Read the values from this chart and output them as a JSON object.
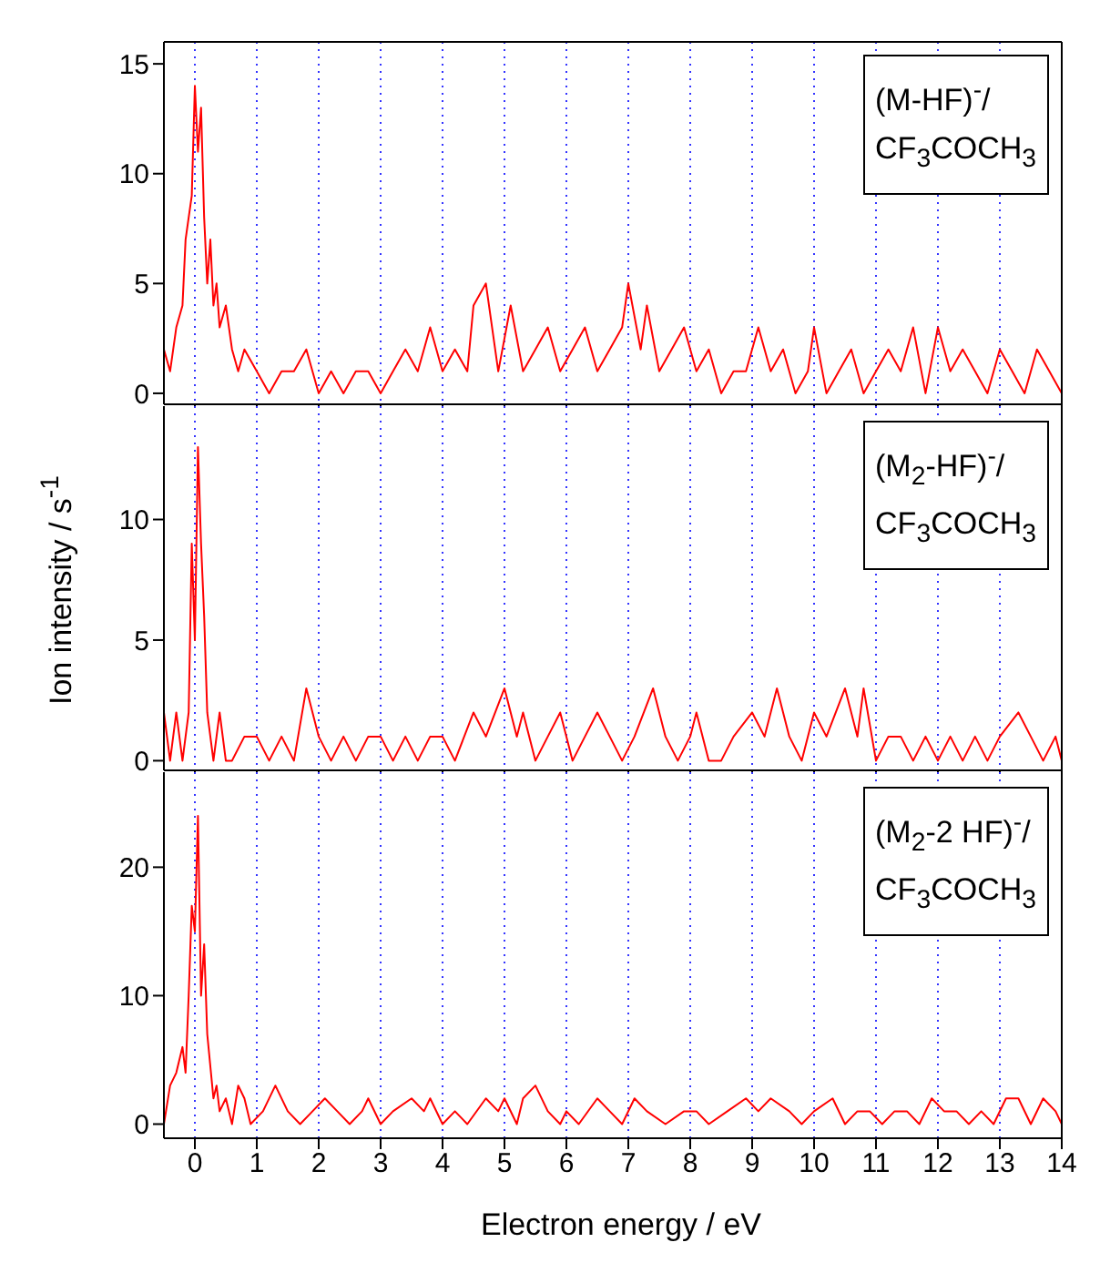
{
  "chart_data": [
    {
      "type": "line",
      "xlim": [
        -0.5,
        14
      ],
      "xticks": [
        0,
        1,
        2,
        3,
        4,
        5,
        6,
        7,
        8,
        9,
        10,
        11,
        12,
        13,
        14
      ],
      "ylim": [
        -0.5,
        16
      ],
      "yticks": [
        0,
        5,
        10,
        15
      ],
      "grid": "x",
      "tick_labels": "y",
      "annotations": [
        "(M-HF)$^{-}$/",
        "CF$_{3}$COCH$_{3}$"
      ],
      "x": [
        -0.5,
        -0.4,
        -0.3,
        -0.2,
        -0.15,
        -0.1,
        -0.05,
        0,
        0.05,
        0.1,
        0.15,
        0.2,
        0.25,
        0.3,
        0.35,
        0.4,
        0.5,
        0.6,
        0.7,
        0.8,
        1.0,
        1.2,
        1.4,
        1.6,
        1.8,
        2.0,
        2.2,
        2.4,
        2.6,
        2.8,
        3.0,
        3.2,
        3.4,
        3.6,
        3.8,
        4.0,
        4.2,
        4.4,
        4.5,
        4.7,
        4.9,
        5.1,
        5.3,
        5.5,
        5.7,
        5.9,
        6.1,
        6.3,
        6.5,
        6.7,
        6.9,
        7.0,
        7.2,
        7.3,
        7.5,
        7.7,
        7.9,
        8.1,
        8.3,
        8.5,
        8.7,
        8.9,
        9.1,
        9.3,
        9.5,
        9.7,
        9.9,
        10.0,
        10.2,
        10.4,
        10.6,
        10.8,
        11.0,
        11.2,
        11.4,
        11.6,
        11.8,
        12.0,
        12.2,
        12.4,
        12.6,
        12.8,
        13.0,
        13.2,
        13.4,
        13.6,
        13.8,
        14.0
      ],
      "series": [
        {
          "color": "#ff0000",
          "values": [
            2,
            1,
            3,
            4,
            7,
            8,
            9,
            14,
            11,
            13,
            8,
            5,
            7,
            4,
            5,
            3,
            4,
            2,
            1,
            2,
            1,
            0,
            1,
            1,
            2,
            0,
            1,
            0,
            1,
            1,
            0,
            1,
            2,
            1,
            3,
            1,
            2,
            1,
            4,
            5,
            1,
            4,
            1,
            2,
            3,
            1,
            2,
            3,
            1,
            2,
            3,
            5,
            2,
            4,
            1,
            2,
            3,
            1,
            2,
            0,
            1,
            1,
            3,
            1,
            2,
            0,
            1,
            3,
            0,
            1,
            2,
            0,
            1,
            2,
            1,
            3,
            0,
            3,
            1,
            2,
            1,
            0,
            2,
            1,
            0,
            2,
            1,
            0
          ]
        }
      ]
    },
    {
      "type": "line",
      "xlim": [
        -0.5,
        14
      ],
      "xticks": [
        0,
        1,
        2,
        3,
        4,
        5,
        6,
        7,
        8,
        9,
        10,
        11,
        12,
        13,
        14
      ],
      "ylim": [
        -0.4,
        14.7
      ],
      "yticks": [
        0,
        5,
        10
      ],
      "grid": "x",
      "tick_labels": "y",
      "ylabel": "Ion intensity / s$^{-1}$",
      "annotations": [
        "(M$_{2}$-HF)$^{-}$/",
        "CF$_{3}$COCH$_{3}$"
      ],
      "x": [
        -0.5,
        -0.4,
        -0.3,
        -0.2,
        -0.1,
        -0.05,
        0,
        0.05,
        0.1,
        0.15,
        0.2,
        0.3,
        0.4,
        0.5,
        0.6,
        0.8,
        1.0,
        1.2,
        1.4,
        1.6,
        1.8,
        2.0,
        2.2,
        2.4,
        2.6,
        2.8,
        3.0,
        3.2,
        3.4,
        3.6,
        3.8,
        4.0,
        4.2,
        4.5,
        4.7,
        5.0,
        5.2,
        5.3,
        5.5,
        5.7,
        5.9,
        6.1,
        6.3,
        6.5,
        6.7,
        6.9,
        7.1,
        7.4,
        7.6,
        7.8,
        8.0,
        8.1,
        8.3,
        8.5,
        8.7,
        9.0,
        9.2,
        9.4,
        9.6,
        9.8,
        10.0,
        10.2,
        10.5,
        10.7,
        10.8,
        11.0,
        11.2,
        11.4,
        11.6,
        11.8,
        12.0,
        12.2,
        12.4,
        12.6,
        12.8,
        13.0,
        13.3,
        13.5,
        13.7,
        13.9,
        14.0
      ],
      "series": [
        {
          "color": "#ff0000",
          "values": [
            2,
            0,
            2,
            0,
            2,
            9,
            5,
            13,
            9,
            6,
            2,
            0,
            2,
            0,
            0,
            1,
            1,
            0,
            1,
            0,
            3,
            1,
            0,
            1,
            0,
            1,
            1,
            0,
            1,
            0,
            1,
            1,
            0,
            2,
            1,
            3,
            1,
            2,
            0,
            1,
            2,
            0,
            1,
            2,
            1,
            0,
            1,
            3,
            1,
            0,
            1,
            2,
            0,
            0,
            1,
            2,
            1,
            3,
            1,
            0,
            2,
            1,
            3,
            1,
            3,
            0,
            1,
            1,
            0,
            1,
            0,
            1,
            0,
            1,
            0,
            1,
            2,
            1,
            0,
            1,
            0
          ]
        }
      ]
    },
    {
      "type": "line",
      "xlim": [
        -0.5,
        14
      ],
      "xticks": [
        0,
        1,
        2,
        3,
        4,
        5,
        6,
        7,
        8,
        9,
        10,
        11,
        12,
        13,
        14
      ],
      "ylim": [
        -1.1,
        27.4
      ],
      "yticks": [
        0,
        10,
        20
      ],
      "grid": "x",
      "xlabel": "Electron energy / eV",
      "annotations": [
        "(M$_{2}$-2 HF)$^{-}$/",
        "CF$_{3}$COCH$_{3}$"
      ],
      "x": [
        -0.5,
        -0.4,
        -0.3,
        -0.2,
        -0.15,
        -0.1,
        -0.05,
        0,
        0.05,
        0.1,
        0.15,
        0.2,
        0.3,
        0.35,
        0.4,
        0.5,
        0.6,
        0.7,
        0.8,
        0.9,
        1.1,
        1.3,
        1.5,
        1.7,
        1.9,
        2.1,
        2.3,
        2.5,
        2.7,
        2.8,
        3.0,
        3.2,
        3.5,
        3.7,
        3.8,
        4.0,
        4.2,
        4.4,
        4.7,
        4.9,
        5.0,
        5.2,
        5.3,
        5.5,
        5.7,
        5.9,
        6.0,
        6.2,
        6.5,
        6.7,
        6.9,
        7.1,
        7.3,
        7.6,
        7.9,
        8.1,
        8.3,
        8.6,
        8.9,
        9.1,
        9.3,
        9.6,
        9.8,
        10.0,
        10.3,
        10.5,
        10.7,
        10.9,
        11.1,
        11.3,
        11.5,
        11.7,
        11.9,
        12.1,
        12.3,
        12.5,
        12.7,
        12.9,
        13.1,
        13.3,
        13.5,
        13.7,
        13.9,
        14.0
      ],
      "series": [
        {
          "color": "#ff0000",
          "values": [
            0,
            3,
            4,
            6,
            4,
            10,
            17,
            15,
            24,
            10,
            14,
            7,
            2,
            3,
            1,
            2,
            0,
            3,
            2,
            0,
            1,
            3,
            1,
            0,
            1,
            2,
            1,
            0,
            1,
            2,
            0,
            1,
            2,
            1,
            2,
            0,
            1,
            0,
            2,
            1,
            2,
            0,
            2,
            3,
            1,
            0,
            1,
            0,
            2,
            1,
            0,
            2,
            1,
            0,
            1,
            1,
            0,
            1,
            2,
            1,
            2,
            1,
            0,
            1,
            2,
            0,
            1,
            1,
            0,
            1,
            1,
            0,
            2,
            1,
            1,
            0,
            1,
            0,
            2,
            2,
            0,
            2,
            1,
            0
          ]
        }
      ]
    }
  ]
}
